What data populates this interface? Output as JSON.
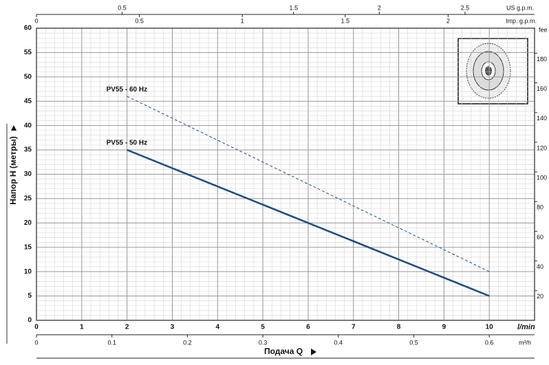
{
  "chart_data": {
    "type": "line",
    "x": [
      2,
      10
    ],
    "series": [
      {
        "name": "PV55 - 60 Hz",
        "color": "#1f4e85",
        "dashed": true,
        "values": [
          46,
          10
        ]
      },
      {
        "name": "PV55 - 50 Hz",
        "color": "#1f4e85",
        "dashed": false,
        "values": [
          35,
          5
        ]
      }
    ],
    "xlim": [
      0,
      11
    ],
    "xticks": [
      0,
      1,
      2,
      3,
      4,
      5,
      6,
      7,
      8,
      9,
      10
    ],
    "xlabel": "l/min",
    "ylim": [
      0,
      60
    ],
    "yticks": [
      0,
      5,
      10,
      15,
      20,
      25,
      30,
      35,
      40,
      45,
      50,
      55,
      60
    ],
    "ylabel": "Напор H (метры)",
    "y2lim": [
      0,
      196.85
    ],
    "y2ticks": [
      20,
      40,
      60,
      80,
      100,
      120,
      140,
      160,
      180
    ],
    "y2label": "fee",
    "secondary_x_axes": [
      {
        "label": "m³/h",
        "lim": [
          0,
          0.66
        ],
        "ticks": [
          0,
          0.1,
          0.2,
          0.3,
          0.4,
          0.5,
          0.6
        ]
      },
      {
        "label": "US g.p.m.",
        "lim": [
          0,
          2.906
        ],
        "ticks": [
          0.5,
          1.5,
          2,
          2.5
        ]
      },
      {
        "label": "Imp. g.p.m.",
        "lim": [
          0,
          2.42
        ],
        "ticks": [
          0,
          0.5,
          1,
          1.5,
          2
        ]
      }
    ],
    "bottom_title": "Подача Q",
    "grid": true,
    "minor_grid": true
  }
}
